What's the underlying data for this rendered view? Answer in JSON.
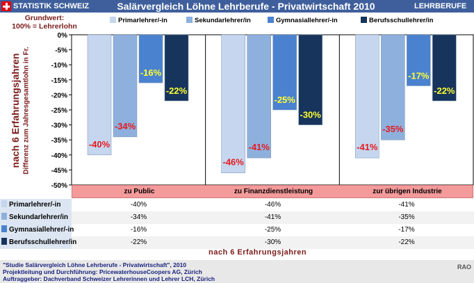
{
  "header": {
    "brand": "STATISTIK SCHWEIZ",
    "title": "Salärvergleich Löhne Lehrberufe - Privatwirtschaft 2010",
    "section": "LEHRBERUFE",
    "flag_icon": "swiss-flag-icon"
  },
  "grundwert": {
    "line1": "Grundwert:",
    "line2": "100% = Lehrerlohn"
  },
  "ylabel1": "nach 6 Erfahrungsjahren",
  "ylabel2": "Differenz zum Jahresgesamtlohn in Fr.",
  "xlabel": "nach 6 Erfahrungsjahren",
  "chart_data": {
    "type": "bar",
    "categories": [
      "zu Public",
      "zu Finanzdienstleistung",
      "zur übrigen Industrie"
    ],
    "series": [
      {
        "name": "Primarlehrer/-in",
        "values": [
          -40,
          -46,
          -41
        ],
        "labels": [
          "-40%",
          "-46%",
          "-41%"
        ]
      },
      {
        "name": "Sekundarlehrer/in",
        "values": [
          -34,
          -41,
          -35
        ],
        "labels": [
          "-34%",
          "-41%",
          "-35%"
        ]
      },
      {
        "name": "Gymnasiallehrer/-in",
        "values": [
          -16,
          -25,
          -17
        ],
        "labels": [
          "-16%",
          "-25%",
          "-17%"
        ]
      },
      {
        "name": "Berufsschullehrer/in",
        "values": [
          -22,
          -30,
          -22
        ],
        "labels": [
          "-22%",
          "-30%",
          "-22%"
        ]
      }
    ],
    "ylim": [
      -50,
      0
    ],
    "yticks": [
      "0%",
      "-5%",
      "-10%",
      "-15%",
      "-20%",
      "-25%",
      "-30%",
      "-35%",
      "-40%",
      "-45%",
      "-50%"
    ],
    "legend_placement": "top",
    "grid": false
  },
  "colors": {
    "series": [
      "#c5d6ee",
      "#8eb0dd",
      "#4a82cf",
      "#16345c"
    ],
    "label_red": "#e8191d",
    "label_yellow": "#ffff33",
    "banner": "#3f5f9c"
  },
  "footer": {
    "line1": "\"Studie Salärvergleich Löhne Lehrberufe - Privatwirtschaft\", 2010",
    "line2": "Projektleitung und Durchführung: PricewaterhouseCoopers AG, Zürich",
    "line3": "Auftraggeber: Dachverband Schweizer Lehrerinnen und Lehrer LCH, Zürich",
    "mark": "RAO"
  }
}
